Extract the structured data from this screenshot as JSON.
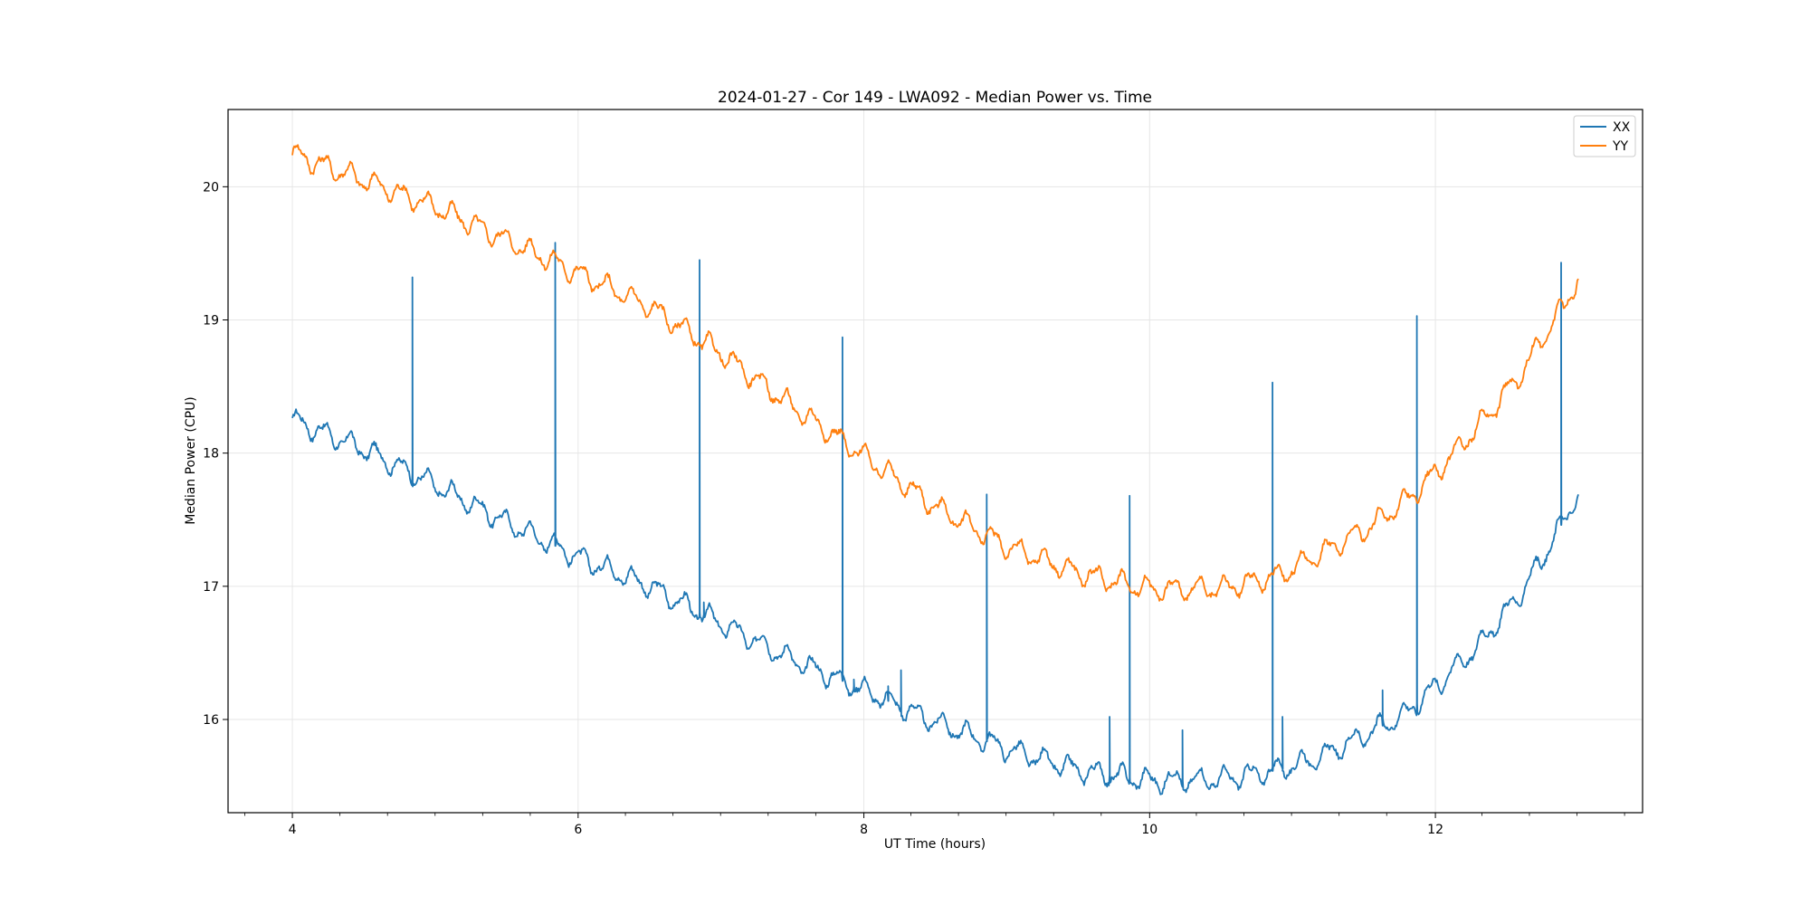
{
  "chart_data": {
    "type": "line",
    "title": "2024-01-27 - Cor 149 - LWA092 - Median Power vs. Time",
    "xlabel": "UT Time (hours)",
    "ylabel": "Median Power (CPU)",
    "xlim": [
      3.55,
      13.45
    ],
    "ylim": [
      15.3,
      20.58
    ],
    "x_ticks": [
      4,
      6,
      8,
      10,
      12
    ],
    "x_tick_labels": [
      "4",
      "6",
      "8",
      "10",
      "12"
    ],
    "x_minor_step": 0.333,
    "y_ticks": [
      16,
      17,
      18,
      19,
      20
    ],
    "y_tick_labels": [
      "16",
      "17",
      "18",
      "19",
      "20"
    ],
    "grid": true,
    "legend": "top-right",
    "colors": {
      "XX": "#1f77b4",
      "YY": "#ff7f0e",
      "grid": "#e6e6e6"
    },
    "series": [
      {
        "name": "XX",
        "color": "#1f77b4",
        "x_start": 4.0,
        "x_end": 13.0,
        "trend": [
          [
            4.0,
            18.25
          ],
          [
            4.5,
            18.03
          ],
          [
            5.0,
            17.76
          ],
          [
            5.5,
            17.48
          ],
          [
            6.0,
            17.22
          ],
          [
            6.5,
            17.0
          ],
          [
            7.0,
            16.72
          ],
          [
            7.5,
            16.45
          ],
          [
            8.0,
            16.22
          ],
          [
            8.5,
            15.98
          ],
          [
            9.0,
            15.78
          ],
          [
            9.5,
            15.62
          ],
          [
            10.0,
            15.54
          ],
          [
            10.5,
            15.55
          ],
          [
            10.9,
            15.62
          ],
          [
            11.2,
            15.72
          ],
          [
            11.5,
            15.88
          ],
          [
            11.8,
            16.05
          ],
          [
            12.0,
            16.25
          ],
          [
            12.3,
            16.55
          ],
          [
            12.6,
            16.95
          ],
          [
            12.8,
            17.3
          ],
          [
            12.9,
            17.5
          ],
          [
            13.0,
            17.7
          ]
        ],
        "ripple_amplitude": 0.07,
        "ripple_period": 0.18,
        "spikes": [
          [
            4.84,
            19.32
          ],
          [
            5.84,
            19.58
          ],
          [
            6.85,
            19.45
          ],
          [
            7.85,
            18.87
          ],
          [
            8.86,
            17.69
          ],
          [
            9.86,
            17.68
          ],
          [
            10.86,
            18.53
          ],
          [
            11.87,
            19.03
          ],
          [
            12.88,
            19.43
          ],
          [
            9.72,
            16.02
          ],
          [
            10.23,
            15.92
          ],
          [
            10.93,
            16.02
          ],
          [
            11.63,
            16.22
          ],
          [
            8.17,
            16.25
          ],
          [
            8.26,
            16.37
          ],
          [
            7.93,
            16.3
          ],
          [
            6.88,
            16.88
          ]
        ]
      },
      {
        "name": "YY",
        "color": "#ff7f0e",
        "x_start": 4.0,
        "x_end": 13.0,
        "trend": [
          [
            4.0,
            20.25
          ],
          [
            4.5,
            20.05
          ],
          [
            5.0,
            19.85
          ],
          [
            5.5,
            19.6
          ],
          [
            6.0,
            19.35
          ],
          [
            6.5,
            19.1
          ],
          [
            7.0,
            18.75
          ],
          [
            7.5,
            18.35
          ],
          [
            8.0,
            17.98
          ],
          [
            8.5,
            17.6
          ],
          [
            9.0,
            17.3
          ],
          [
            9.5,
            17.1
          ],
          [
            10.0,
            16.98
          ],
          [
            10.5,
            16.98
          ],
          [
            10.9,
            17.08
          ],
          [
            11.2,
            17.25
          ],
          [
            11.5,
            17.42
          ],
          [
            11.8,
            17.65
          ],
          [
            12.0,
            17.85
          ],
          [
            12.3,
            18.2
          ],
          [
            12.6,
            18.6
          ],
          [
            12.8,
            18.95
          ],
          [
            12.9,
            19.1
          ],
          [
            13.0,
            19.32
          ]
        ],
        "ripple_amplitude": 0.07,
        "ripple_period": 0.18,
        "spikes": []
      }
    ]
  }
}
